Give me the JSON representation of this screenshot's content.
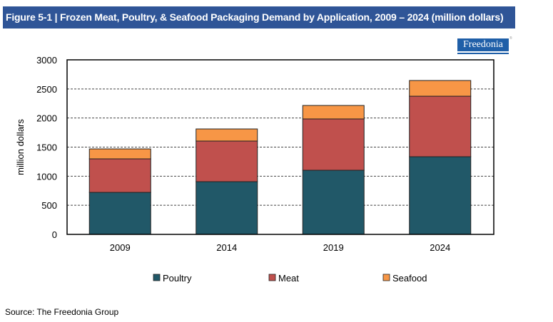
{
  "header": {
    "title": "Figure 5-1 | Frozen Meat, Poultry, & Seafood Packaging Demand by Application, 2009 – 2024 (million dollars)",
    "logo_text": "Freedonia",
    "logo_mark": "®"
  },
  "footer": {
    "source": "Source: The Freedonia Group"
  },
  "chart_data": {
    "type": "bar",
    "stacked": true,
    "title": "Frozen Meat, Poultry, & Seafood Packaging Demand by Application, 2009 – 2024 (million dollars)",
    "xlabel": "",
    "ylabel": "million dollars",
    "ylim": [
      0,
      3000
    ],
    "yticks": [
      0,
      500,
      1000,
      1500,
      2000,
      2500,
      3000
    ],
    "ytick_labels": [
      "0",
      "500",
      "1000",
      "1500",
      "2000",
      "2500",
      "3000"
    ],
    "grid": "horizontal-dashed",
    "legend_position": "bottom",
    "categories": [
      "2009",
      "2014",
      "2019",
      "2024"
    ],
    "series": [
      {
        "name": "Poultry",
        "color": "#215868",
        "values": [
          722,
          906,
          1102,
          1335
        ]
      },
      {
        "name": "Meat",
        "color": "#C0504D",
        "values": [
          576,
          698,
          882,
          1040
        ]
      },
      {
        "name": "Seafood",
        "color": "#F79646",
        "values": [
          171,
          208,
          232,
          270
        ]
      }
    ]
  }
}
